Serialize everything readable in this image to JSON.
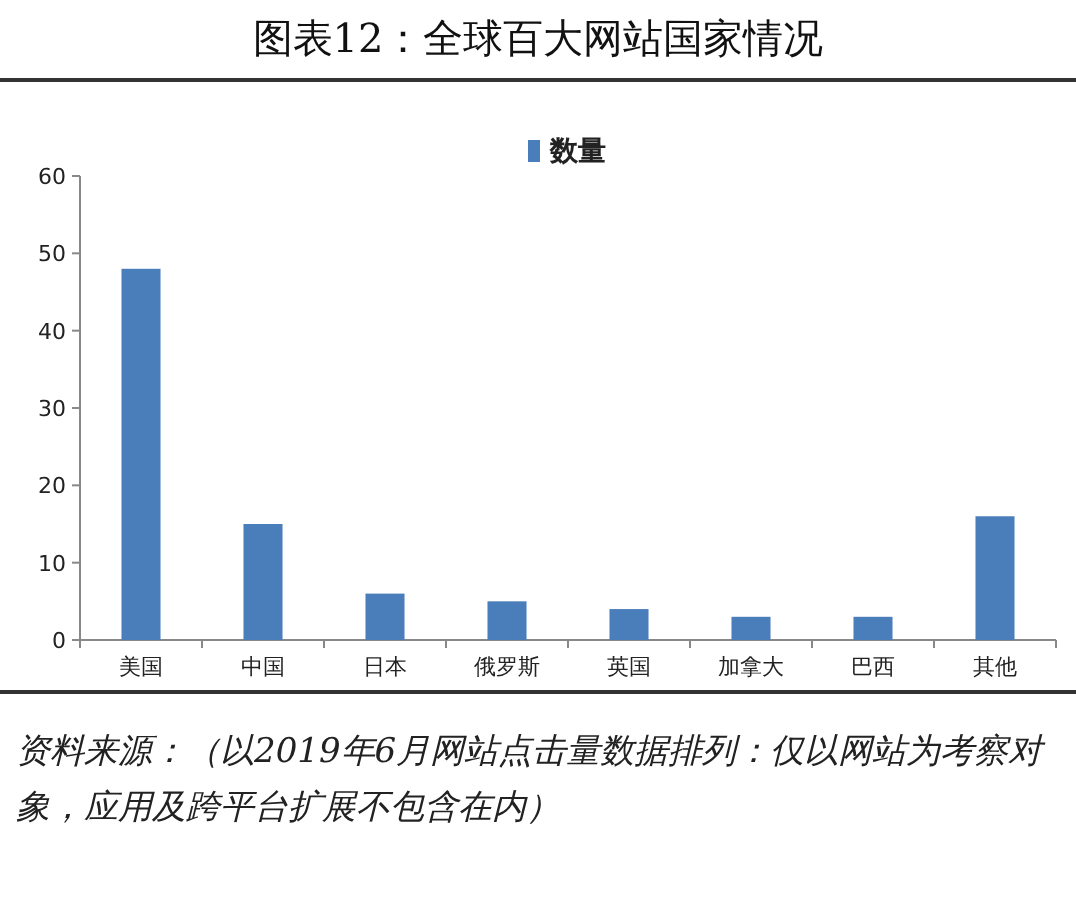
{
  "chart_data": {
    "type": "bar",
    "title": "图表12：全球百大网站国家情况",
    "categories": [
      "美国",
      "中国",
      "日本",
      "俄罗斯",
      "英国",
      "加拿大",
      "巴西",
      "其他"
    ],
    "series": [
      {
        "name": "数量",
        "color": "#4a7ebb",
        "values": [
          48,
          15,
          6,
          5,
          4,
          3,
          3,
          16
        ]
      }
    ],
    "ylim": [
      0,
      60
    ],
    "yticks": [
      0,
      10,
      20,
      30,
      40,
      50,
      60
    ],
    "grid": false,
    "legend": "top",
    "annotations": [
      "资料来源：（以2019年6月网站点击量数据排列：仅以网站为考察对象，应用及跨平台扩展不包含在内）"
    ]
  }
}
